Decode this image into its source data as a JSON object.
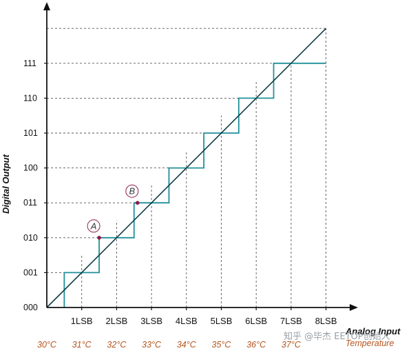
{
  "axes": {
    "y_title": "Digital Output",
    "x_title": "Analog Input",
    "temp_title": "Temperature"
  },
  "y_codes": [
    "000",
    "001",
    "010",
    "011",
    "100",
    "101",
    "110",
    "111"
  ],
  "x_ticks": [
    "1LSB",
    "2LSB",
    "3LSB",
    "4LSB",
    "5LSB",
    "6LSB",
    "7LSB",
    "8LSB"
  ],
  "temps": [
    "30°C",
    "31°C",
    "32°C",
    "33°C",
    "34°C",
    "35°C",
    "36°C",
    "37°C"
  ],
  "markers": [
    {
      "letter": "A",
      "input_lsb": 1.5,
      "code": 2
    },
    {
      "letter": "B",
      "input_lsb": 2.6,
      "code": 3
    }
  ],
  "transfer": {
    "ideal_line": "0 to 8 LSB",
    "step_threshold_offset_lsb": 0.5,
    "steps": 7
  },
  "colors": {
    "staircase": "#1f8f9a",
    "ideal": "#0d3b44",
    "axis": "#111111",
    "grid": "#555555",
    "marker": "#8b1a4a",
    "temperature": "#b5541c"
  },
  "watermark": "知乎 @毕杰 EETOP创始人"
}
